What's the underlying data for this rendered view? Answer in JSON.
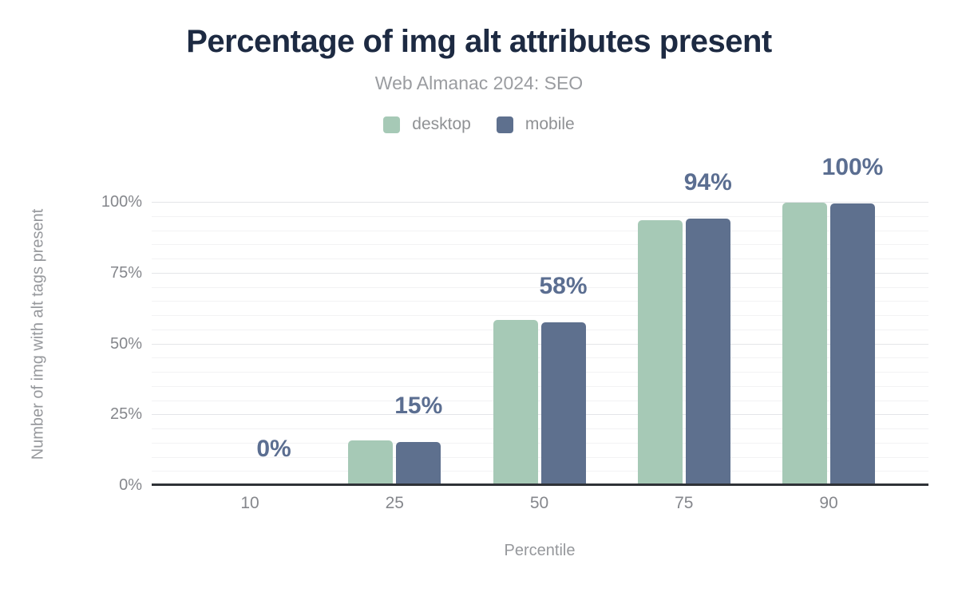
{
  "title": "Percentage of img alt attributes present",
  "subtitle": "Web Almanac 2024: SEO",
  "chart_data": {
    "type": "bar",
    "title": "Percentage of img alt attributes present",
    "subtitle": "Web Almanac 2024: SEO",
    "categories": [
      "10",
      "25",
      "50",
      "75",
      "90"
    ],
    "series": [
      {
        "name": "desktop",
        "color": "#a6c9b6",
        "values": [
          0,
          15.7,
          58.2,
          93.4,
          99.6
        ]
      },
      {
        "name": "mobile",
        "color": "#5e708e",
        "values": [
          0,
          15.2,
          57.4,
          94.1,
          99.5
        ]
      }
    ],
    "data_labels": [
      "0%",
      "15%",
      "58%",
      "94%",
      "100%"
    ],
    "xlabel": "Percentile",
    "ylabel": "Number of img with alt tags present",
    "y_ticks": [
      {
        "label": "0%",
        "value": 0
      },
      {
        "label": "25%",
        "value": 25
      },
      {
        "label": "50%",
        "value": 50
      },
      {
        "label": "75%",
        "value": 75
      },
      {
        "label": "100%",
        "value": 100
      }
    ],
    "ylim": [
      0,
      100
    ],
    "grid": true,
    "minor_grid_step_percent": 5,
    "legend_position": "top"
  },
  "colors": {
    "background": "#ffffff",
    "title": "#1d2a42",
    "subtitle": "#9a9ca0",
    "legend_text": "#8f9194",
    "axis_tick_text": "#85878c",
    "axis_title_text": "#96989c",
    "data_label": "#5b6e91",
    "grid_minor": "#f2f2f4",
    "grid_major": "#e4e5e8",
    "axis_line": "#2f3237",
    "desktop_bar": "#a6c9b6",
    "mobile_bar": "#5e708e"
  }
}
